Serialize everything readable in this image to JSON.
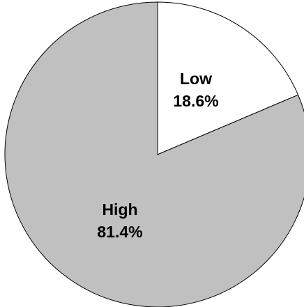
{
  "chart_data": {
    "type": "pie",
    "title": "",
    "start_angle_deg": 0,
    "direction": "clockwise",
    "slices": [
      {
        "label": "Low",
        "value": 18.6,
        "value_text": "18.6%",
        "color": "#ffffff"
      },
      {
        "label": "High",
        "value": 81.4,
        "value_text": "81.4%",
        "color": "#c0c0c0"
      }
    ],
    "edge_color": "#000000"
  }
}
